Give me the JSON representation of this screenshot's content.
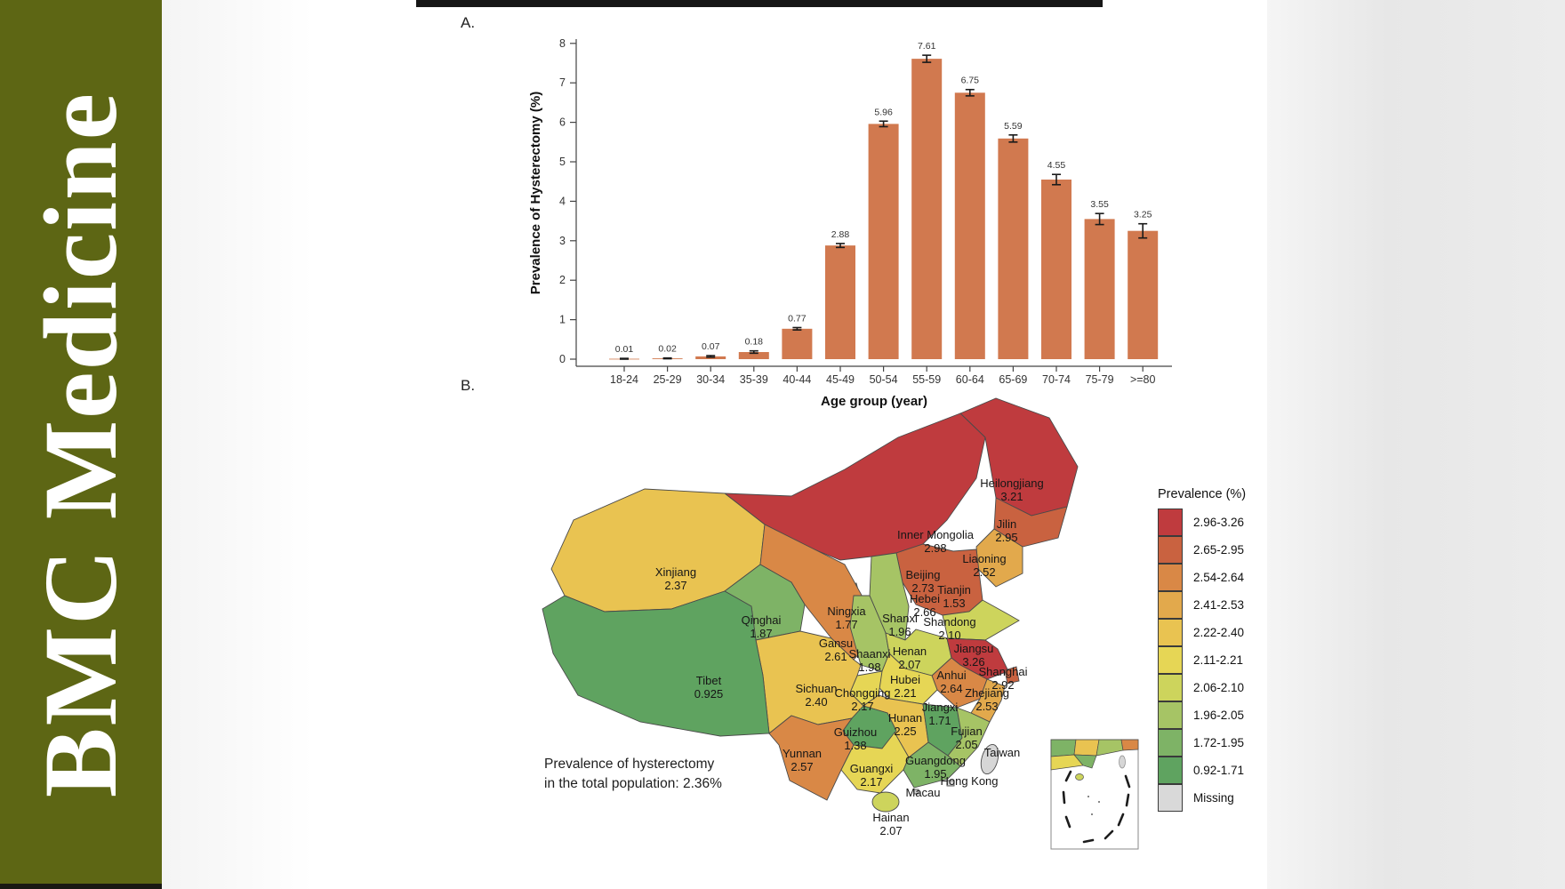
{
  "banner": {
    "journal": "BMC Medicine",
    "background": "#5d6614"
  },
  "figure": {
    "panel_a": "A.",
    "panel_b": "B."
  },
  "chart_data": [
    {
      "type": "bar",
      "panel": "A",
      "categories": [
        "18-24",
        "25-29",
        "30-34",
        "35-39",
        "40-44",
        "45-49",
        "50-54",
        "55-59",
        "60-64",
        "65-69",
        "70-74",
        "75-79",
        ">=80"
      ],
      "values": [
        0.01,
        0.02,
        0.07,
        0.18,
        0.77,
        2.88,
        5.96,
        7.61,
        6.75,
        5.59,
        4.55,
        3.55,
        3.25
      ],
      "errors": [
        0.01,
        0.01,
        0.02,
        0.03,
        0.03,
        0.05,
        0.07,
        0.09,
        0.08,
        0.09,
        0.13,
        0.14,
        0.18
      ],
      "value_labels": [
        "0.01",
        "0.02",
        "0.07",
        "0.18",
        "0.77",
        "2.88",
        "5.96",
        "7.61",
        "6.75",
        "5.59",
        "4.55",
        "3.55",
        "3.25"
      ],
      "xlabel": "Age group (year)",
      "ylabel": "Prevalence of Hysterectomy (%)",
      "ylim": [
        0,
        8
      ],
      "yticks": [
        0,
        1,
        2,
        3,
        4,
        5,
        6,
        7,
        8
      ],
      "bar_color": "#d1794f",
      "error_color": "#1a1a1a",
      "grid": false,
      "legend_position": "none"
    },
    {
      "type": "choropleth",
      "panel": "B",
      "region": "China provinces",
      "annotation_lines": [
        "Prevalence of hysterectomy",
        "in the total population: 2.36%"
      ],
      "legend_title": "Prevalence (%)",
      "legend_position": "right",
      "classes": [
        {
          "range": "2.96-3.26",
          "color": "#bf3b3e"
        },
        {
          "range": "2.65-2.95",
          "color": "#c96240"
        },
        {
          "range": "2.54-2.64",
          "color": "#d98846"
        },
        {
          "range": "2.41-2.53",
          "color": "#e2a94c"
        },
        {
          "range": "2.22-2.40",
          "color": "#e9c351"
        },
        {
          "range": "2.11-2.21",
          "color": "#e6d655"
        },
        {
          "range": "2.06-2.10",
          "color": "#cdd45c"
        },
        {
          "range": "1.96-2.05",
          "color": "#a6c465"
        },
        {
          "range": "1.72-1.95",
          "color": "#7eb366"
        },
        {
          "range": "0.92-1.71",
          "color": "#5fa360"
        },
        {
          "range": "Missing",
          "color": "#d9d9d9"
        }
      ],
      "provinces": [
        {
          "name": "Heilongjiang",
          "value": "3.21",
          "color": "#bf3b3e"
        },
        {
          "name": "Inner Mongolia",
          "value": "2.98",
          "color": "#bf3b3e"
        },
        {
          "name": "Jilin",
          "value": "2.95",
          "color": "#c96240"
        },
        {
          "name": "Liaoning",
          "value": "2.52",
          "color": "#e2a94c"
        },
        {
          "name": "Xinjiang",
          "value": "2.37",
          "color": "#e9c351"
        },
        {
          "name": "Beijing",
          "value": "2.73",
          "color": "#c96240"
        },
        {
          "name": "Tianjin",
          "value": "1.53",
          "color": "#5fa360"
        },
        {
          "name": "Hebei",
          "value": "2.66",
          "color": "#c96240"
        },
        {
          "name": "Shanxi",
          "value": "1.96",
          "color": "#a6c465"
        },
        {
          "name": "Shandong",
          "value": "2.10",
          "color": "#cdd45c"
        },
        {
          "name": "Ningxia",
          "value": "1.77",
          "color": "#7eb366"
        },
        {
          "name": "Gansu",
          "value": "2.61",
          "color": "#d98846"
        },
        {
          "name": "Qinghai",
          "value": "1.87",
          "color": "#7eb366"
        },
        {
          "name": "Shaanxi",
          "value": "1.98",
          "color": "#a6c465"
        },
        {
          "name": "Henan",
          "value": "2.07",
          "color": "#cdd45c"
        },
        {
          "name": "Jiangsu",
          "value": "3.26",
          "color": "#bf3b3e"
        },
        {
          "name": "Anhui",
          "value": "2.64",
          "color": "#d98846"
        },
        {
          "name": "Shanghai",
          "value": "2.92",
          "color": "#c96240"
        },
        {
          "name": "Zhejiang",
          "value": "2.53",
          "color": "#e2a94c"
        },
        {
          "name": "Hubei",
          "value": "2.21",
          "color": "#e6d655"
        },
        {
          "name": "Chongqing",
          "value": "2.17",
          "color": "#e6d655"
        },
        {
          "name": "Sichuan",
          "value": "2.40",
          "color": "#e9c351"
        },
        {
          "name": "Tibet",
          "value": "0.925",
          "color": "#5fa360"
        },
        {
          "name": "Hunan",
          "value": "2.25",
          "color": "#e9c351"
        },
        {
          "name": "Jiangxi",
          "value": "1.71",
          "color": "#5fa360"
        },
        {
          "name": "Fujian",
          "value": "2.05",
          "color": "#a6c465"
        },
        {
          "name": "Guizhou",
          "value": "1.38",
          "color": "#5fa360"
        },
        {
          "name": "Yunnan",
          "value": "2.57",
          "color": "#d98846"
        },
        {
          "name": "Guangxi",
          "value": "2.17",
          "color": "#e6d655"
        },
        {
          "name": "Guangdong",
          "value": "1.95",
          "color": "#7eb366"
        },
        {
          "name": "Hainan",
          "value": "2.07",
          "color": "#cdd45c"
        },
        {
          "name": "Taiwan",
          "value": null,
          "color": "#d6d6d6"
        },
        {
          "name": "Hong Kong",
          "value": null,
          "color": "#d6d6d6"
        },
        {
          "name": "Macau",
          "value": null,
          "color": "#d6d6d6"
        }
      ]
    }
  ]
}
